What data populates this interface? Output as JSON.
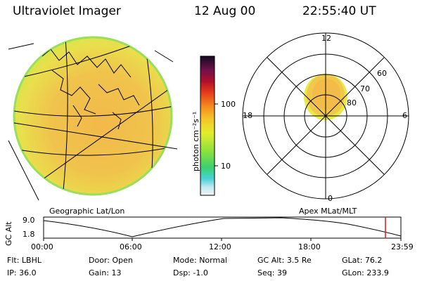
{
  "header": {
    "instrument": "Ultraviolet Imager",
    "date": "12 Aug 00",
    "time": "22:55:40 UT"
  },
  "colorbar": {
    "unit_label": "photon cm⁻²s⁻¹",
    "ticks": [
      "100",
      "10"
    ]
  },
  "polar_plot": {
    "mlt_labels": [
      "12",
      "18",
      "6",
      "0"
    ],
    "mlat_labels": [
      "60",
      "70",
      "80"
    ]
  },
  "map_labels": {
    "left": "Geographic Lat/Lon",
    "right": "Apex MLat/MLT"
  },
  "altitude_plot": {
    "ylabel": "GC Alt",
    "y_ticks": [
      "9.0",
      "1.8"
    ],
    "x_ticks": [
      "00:00",
      "06:00",
      "12:00",
      "18:00",
      "23:59"
    ],
    "marker_color": "#e01818"
  },
  "status": {
    "row1": [
      {
        "label": "Flt:",
        "value": "LBHL"
      },
      {
        "label": "Door:",
        "value": "Open"
      },
      {
        "label": "Mode:",
        "value": "Normal"
      },
      {
        "label": "GC Alt:",
        "value": "3.5 Re"
      },
      {
        "label": "GLat:",
        "value": "76.2"
      }
    ],
    "row2": [
      {
        "label": "IP:",
        "value": "36.0"
      },
      {
        "label": "Gain:",
        "value": "13"
      },
      {
        "label": "Dsp:",
        "value": "-1.0"
      },
      {
        "label": "Seq:",
        "value": "39"
      },
      {
        "label": "GLon:",
        "value": "233.9"
      }
    ]
  }
}
